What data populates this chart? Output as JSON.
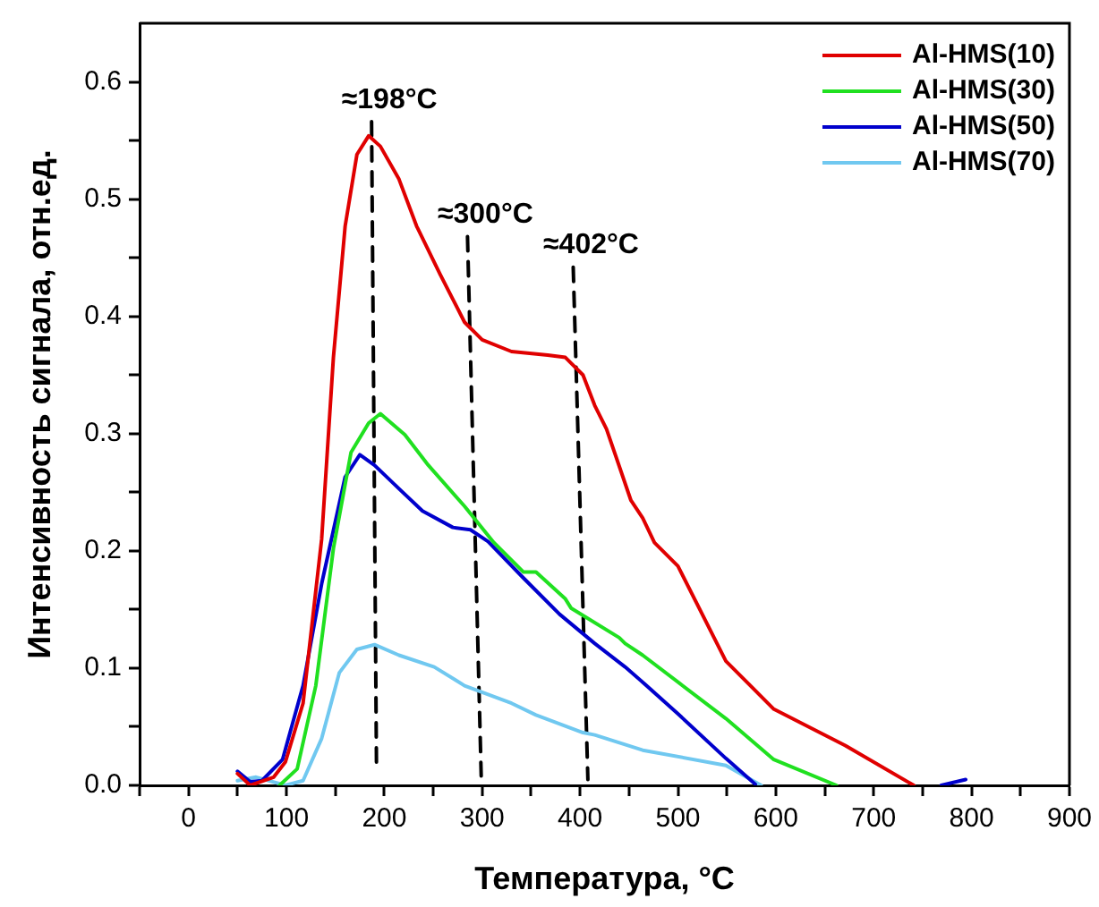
{
  "chart_data": {
    "type": "line",
    "xlabel": "Температура, °C",
    "ylabel": "Интенсивность сигнала, отн.ед.",
    "xlim": [
      -50,
      900
    ],
    "ylim": [
      0,
      0.65
    ],
    "xticks": [
      {
        "value": -50,
        "label": null
      },
      0,
      {
        "value": 50,
        "label": null
      },
      100,
      {
        "value": 150,
        "label": null
      },
      200,
      {
        "value": 250,
        "label": null
      },
      300,
      {
        "value": 350,
        "label": null
      },
      400,
      {
        "value": 450,
        "label": null
      },
      500,
      {
        "value": 550,
        "label": null
      },
      600,
      {
        "value": 650,
        "label": null
      },
      700,
      {
        "value": 750,
        "label": null
      },
      800,
      {
        "value": 850,
        "label": null
      },
      900
    ],
    "yticks": [
      {
        "value": 0,
        "label": "0.0"
      },
      {
        "value": 0.05,
        "label": null
      },
      0.1,
      {
        "value": 0.15,
        "label": null
      },
      0.2,
      {
        "value": 0.25,
        "label": null
      },
      0.3,
      {
        "value": 0.35,
        "label": null
      },
      0.4,
      {
        "value": 0.45,
        "label": null
      },
      0.5,
      {
        "value": 0.55,
        "label": null
      },
      0.6
    ],
    "grid": false,
    "legend": "top right",
    "marker": "none",
    "line_style": "solid",
    "series": [
      {
        "name": "Al-HMS(10)",
        "color": "#e00000",
        "x": [
          50,
          63,
          87,
          99,
          117,
          136,
          148,
          160,
          172,
          184,
          196,
          215,
          233,
          257,
          282,
          300,
          330,
          367,
          385,
          403,
          415,
          427,
          452,
          464,
          476,
          500,
          549,
          598,
          671,
          741
        ],
        "values": [
          0.01,
          0,
          0.007,
          0.02,
          0.07,
          0.21,
          0.365,
          0.477,
          0.538,
          0.554,
          0.545,
          0.517,
          0.477,
          0.436,
          0.395,
          0.38,
          0.37,
          0.367,
          0.365,
          0.35,
          0.324,
          0.304,
          0.243,
          0.228,
          0.207,
          0.187,
          0.106,
          0.065,
          0.034,
          0
        ]
      },
      {
        "name": "Al-HMS(30)",
        "color": "#20e020",
        "x": [
          93,
          111,
          130,
          148,
          166,
          184,
          196,
          221,
          245,
          282,
          312,
          342,
          355,
          385,
          391,
          440,
          446,
          464,
          549,
          598,
          662
        ],
        "values": [
          0,
          0.014,
          0.085,
          0.202,
          0.284,
          0.309,
          0.317,
          0.299,
          0.273,
          0.238,
          0.207,
          0.182,
          0.182,
          0.159,
          0.151,
          0.126,
          0.121,
          0.111,
          0.057,
          0.022,
          0
        ]
      },
      {
        "name": "Al-HMS(50)",
        "color": "#0000cc",
        "x": [
          50,
          63,
          75,
          96,
          117,
          136,
          160,
          175,
          190,
          215,
          239,
          270,
          288,
          306,
          342,
          379,
          415,
          446,
          464,
          500,
          549,
          579
        ],
        "values": [
          0.012,
          0.003,
          0.004,
          0.022,
          0.085,
          0.172,
          0.263,
          0.282,
          0.273,
          0.253,
          0.234,
          0.22,
          0.218,
          0.208,
          0.177,
          0.146,
          0.121,
          0.101,
          0.088,
          0.061,
          0.023,
          0.001
        ]
      },
      {
        "name": "Al-HMS(70)",
        "color": "#70c8f0",
        "x": [
          50,
          69,
          99,
          117,
          136,
          154,
          172,
          190,
          215,
          251,
          282,
          330,
          355,
          403,
          415,
          464,
          549,
          585
        ],
        "values": [
          0.004,
          0.007,
          0,
          0.004,
          0.04,
          0.096,
          0.116,
          0.12,
          0.111,
          0.101,
          0.085,
          0.07,
          0.06,
          0.045,
          0.043,
          0.03,
          0.017,
          0
        ]
      },
      {
        "color": "#0000cc",
        "x": [
          769,
          794
        ],
        "values": [
          0,
          0.005
        ]
      },
      {
        "type": "line",
        "color": "#000000",
        "line_style": "dashed",
        "x": [
          187,
          192
        ],
        "values": [
          0.566,
          0.017
        ]
      },
      {
        "type": "line",
        "color": "#000000",
        "line_style": "dashed",
        "x": [
          285,
          299
        ],
        "values": [
          0.468,
          0.008
        ]
      },
      {
        "type": "line",
        "color": "#000000",
        "line_style": "dashed",
        "x": [
          393,
          408
        ],
        "values": [
          0.442,
          0.005
        ]
      }
    ],
    "annotations": [
      {
        "text": "≈198°C",
        "x": 187,
        "y": 0.566
      },
      {
        "text": "≈300°C",
        "x": 285,
        "y": 0.468
      },
      {
        "text": "≈402°C",
        "x": 393,
        "y": 0.442
      }
    ]
  }
}
